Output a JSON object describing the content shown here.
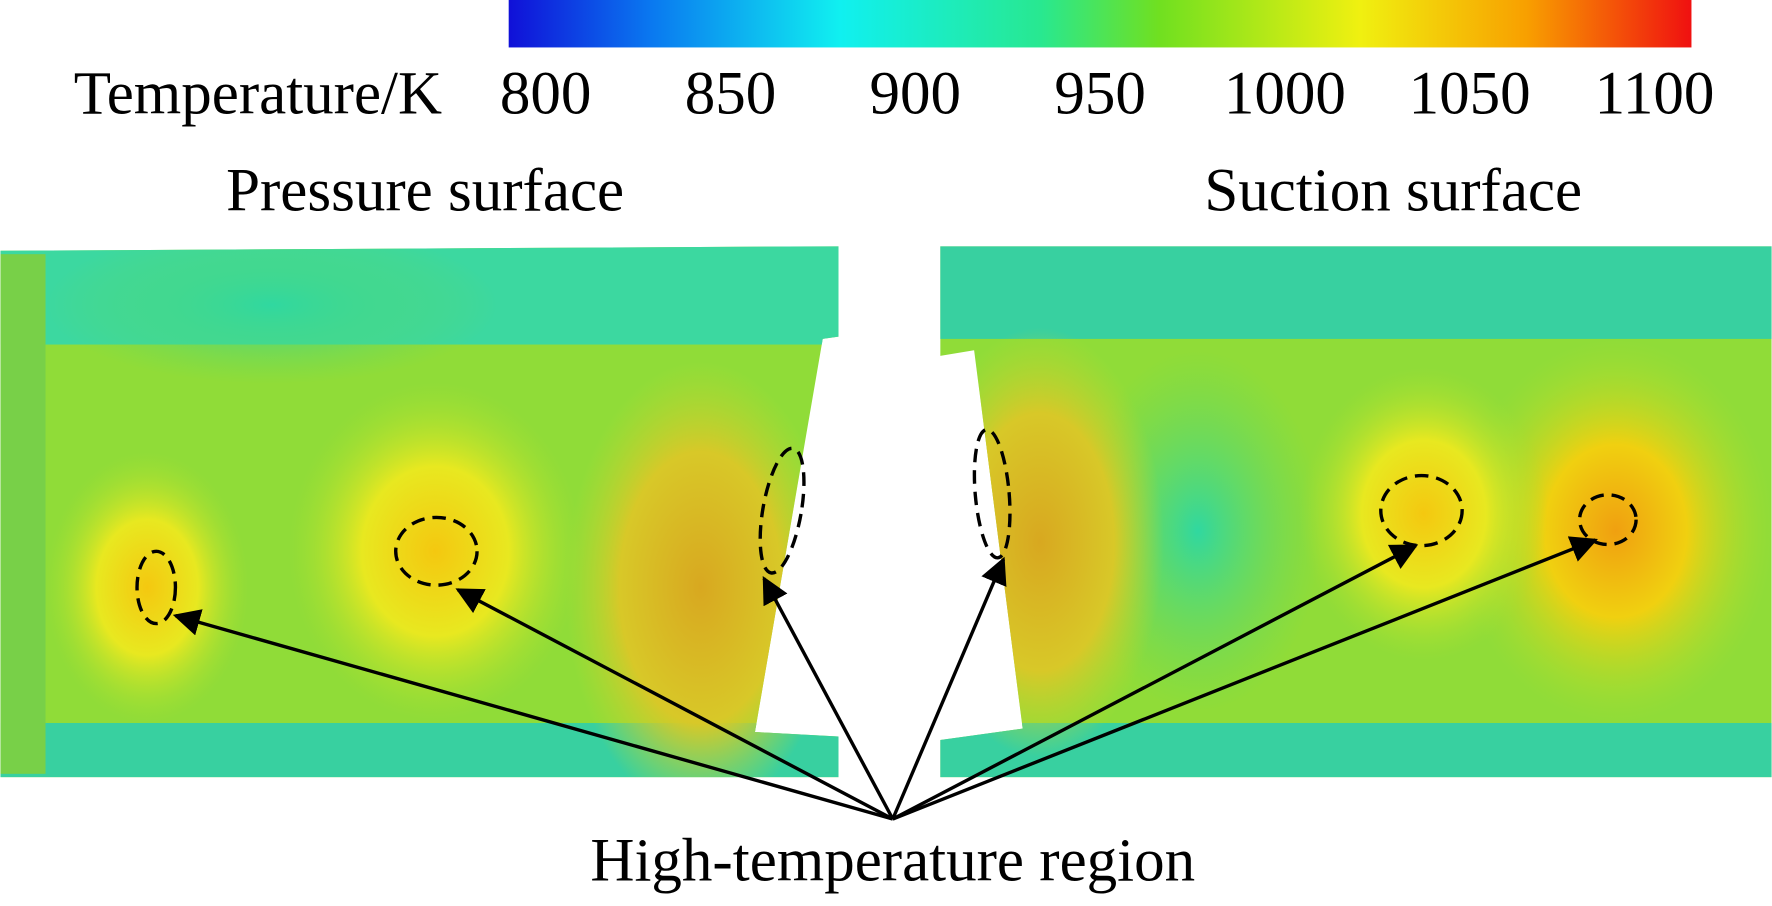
{
  "colorbar": {
    "label": "Temperature/K",
    "lim": [
      790,
      1110
    ],
    "ticks": [
      800,
      850,
      900,
      950,
      1000,
      1050,
      1100
    ]
  },
  "panels": [
    {
      "title": "Pressure surface"
    },
    {
      "title": "Suction surface"
    }
  ],
  "annotation": "High-temperature region"
}
